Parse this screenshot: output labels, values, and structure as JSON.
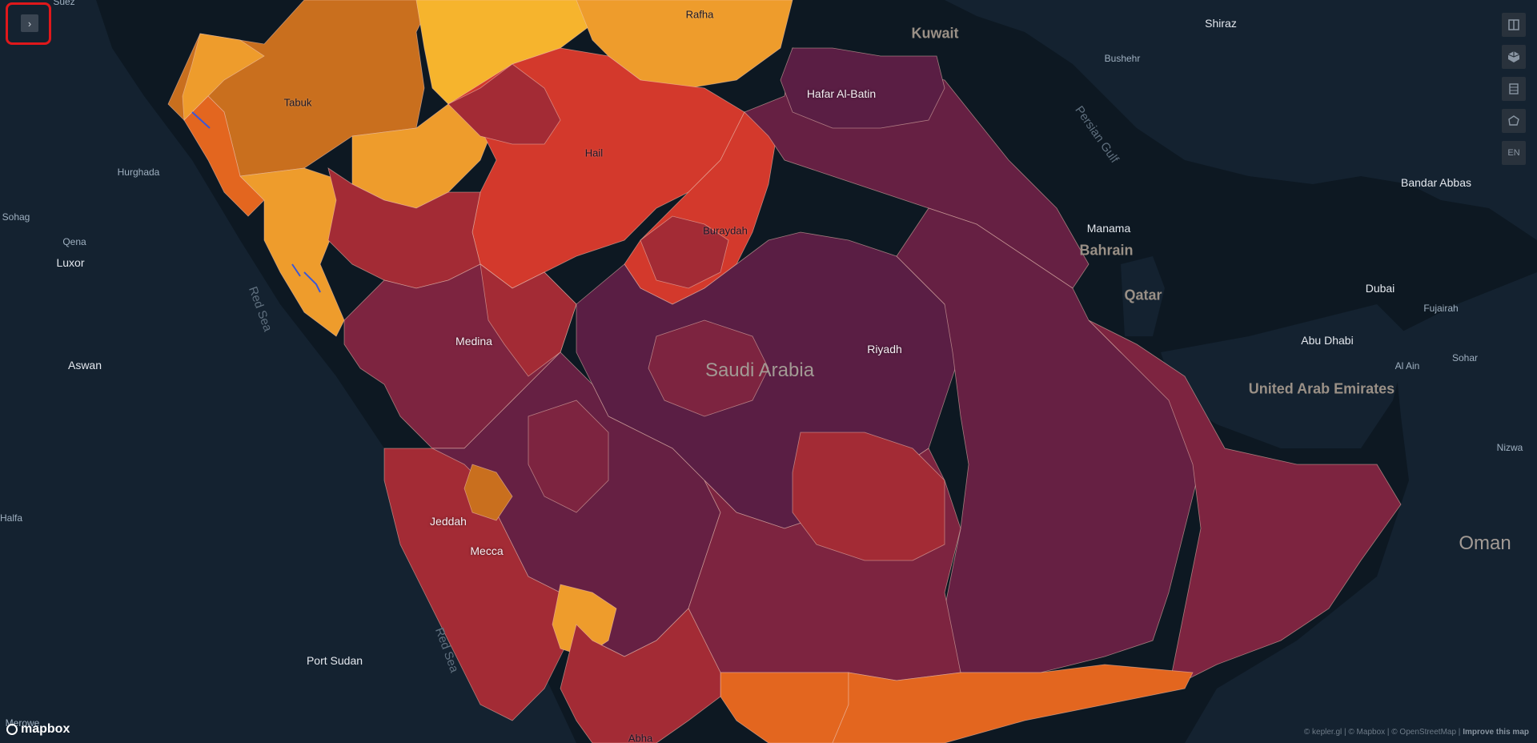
{
  "map": {
    "land_color": "#142230",
    "water_color": "#0d1822",
    "region_colors": {
      "yellow": "#f6b42d",
      "light_orange": "#ee9c2c",
      "orange": "#c96f1e",
      "dark_orange": "#e3661f",
      "red": "#d3392c",
      "crimson": "#a32b35",
      "maroon": "#7d2440",
      "plum": "#662043",
      "dark_plum": "#5a1e44",
      "border": "#f3c9b8"
    },
    "labels": {
      "suez": "Suez",
      "tabuk": "Tabuk",
      "rafha": "Rafha",
      "kuwait": "Kuwait",
      "shiraz": "Shiraz",
      "bushehr": "Bushehr",
      "hafar_al_batin": "Hafar Al-Batin",
      "hurghada": "Hurghada",
      "hail": "Hail",
      "persian_gulf": "Persian Gulf",
      "bandar_abbas": "Bandar Abbas",
      "sohag": "Sohag",
      "qena": "Qena",
      "luxor": "Luxor",
      "buraydah": "Buraydah",
      "manama": "Manama",
      "bahrain": "Bahrain",
      "red_sea_north": "Red Sea",
      "qatar": "Qatar",
      "dubai": "Dubai",
      "fujairah": "Fujairah",
      "medina": "Medina",
      "abu_dhabi": "Abu Dhabi",
      "riyadh": "Riyadh",
      "saudi_arabia": "Saudi Arabia",
      "aswan": "Aswan",
      "al_ain": "Al Ain",
      "sohar": "Sohar",
      "uae": "United Arab Emirates",
      "nizwa": "Nizwa",
      "halfa": "Halfa",
      "jeddah": "Jeddah",
      "oman": "Oman",
      "mecca": "Mecca",
      "red_sea_south": "Red Sea",
      "port_sudan": "Port Sudan",
      "abha": "Abha",
      "merowe": "Merowe"
    }
  },
  "sidebar_controls": {
    "layers_icon": "split-map-icon",
    "3d_icon": "cube-3d-icon",
    "legend_icon": "legend-list-icon",
    "draw_icon": "draw-polygon-icon",
    "locale_label": "EN"
  },
  "panel_toggle": {
    "icon": "chevron-right-icon",
    "label": "›"
  },
  "logo": {
    "text": "mapbox"
  },
  "attribution": {
    "text": "© kepler.gl | © Mapbox | © OpenStreetMap | ",
    "link": "Improve this map"
  }
}
